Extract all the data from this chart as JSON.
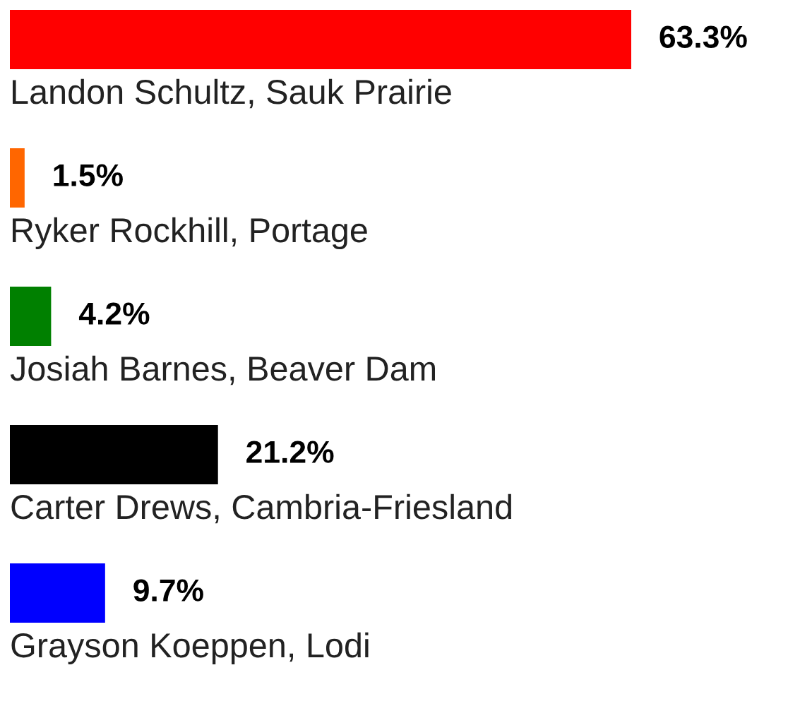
{
  "chart_data": {
    "type": "bar",
    "orientation": "horizontal",
    "categories": [
      null,
      "Landon Schultz, Sauk Prairie",
      "Ryker Rockhill, Portage",
      "Josiah Barnes, Beaver Dam",
      "Carter Drews, Cambria-Friesland",
      "Grayson Koeppen, Lodi"
    ],
    "values": [
      63.3,
      1.5,
      4.2,
      21.2,
      9.7,
      null
    ],
    "colors": [
      "#ff0000",
      "#ff6600",
      "#008000",
      "#000000",
      "#0000ff",
      null
    ],
    "value_labels": [
      "63.3%",
      "1.5%",
      "4.2%",
      "21.2%",
      "9.7%",
      null
    ]
  }
}
